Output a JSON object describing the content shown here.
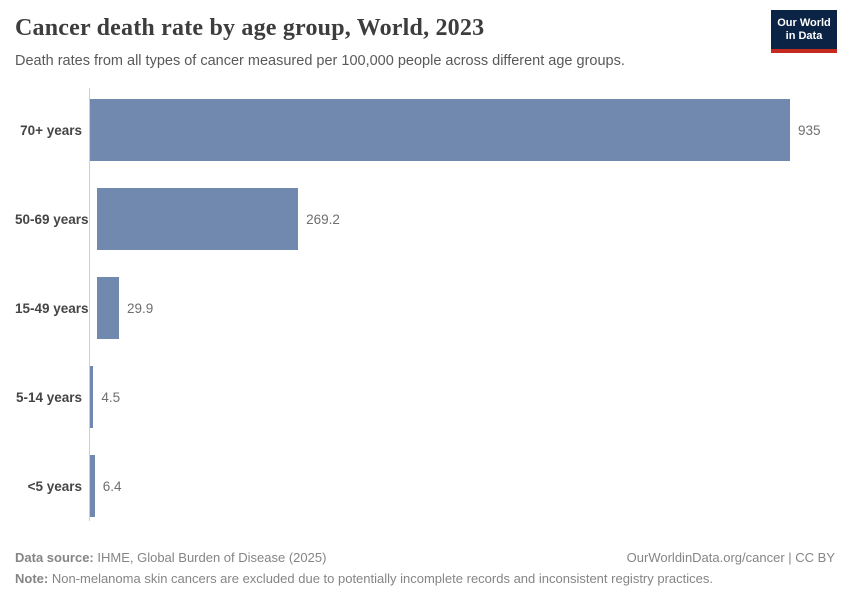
{
  "header": {
    "title": "Cancer death rate by age group, World, 2023",
    "subtitle": "Death rates from all types of cancer measured per 100,000 people across different age groups."
  },
  "logo": {
    "line1": "Our World",
    "line2": "in Data"
  },
  "chart_data": {
    "type": "bar",
    "orientation": "horizontal",
    "title": "Cancer death rate by age group, World, 2023",
    "xlabel": "",
    "ylabel": "",
    "categories": [
      "70+ years",
      "50-69 years",
      "15-49 years",
      "5-14 years",
      "<5 years"
    ],
    "values": [
      935,
      269.2,
      29.9,
      4.5,
      6.4
    ],
    "value_labels": [
      "935",
      "269.2",
      "29.9",
      "4.5",
      "6.4"
    ],
    "unit": "deaths per 100,000 people",
    "xlim": [
      0,
      935
    ],
    "grid": false,
    "legend": false,
    "bar_color": "#7189ae"
  },
  "footer": {
    "source_label": "Data source:",
    "source_text": " IHME, Global Burden of Disease (2025)",
    "credit": "OurWorldinData.org/cancer | CC BY",
    "note_label": "Note:",
    "note_text": " Non-melanoma skin cancers are excluded due to potentially incomplete records and inconsistent registry practices."
  },
  "colors": {
    "bar": "#7189ae",
    "axis_line": "#cfcfcf",
    "title_text": "#3d3d3d",
    "subtitle_text": "#595959",
    "category_label": "#454545",
    "value_label": "#6e6e6e",
    "footer_text": "#858585",
    "logo_bg": "#0b2445",
    "logo_red": "#c52a1f",
    "logo_text": "#ffffff"
  }
}
